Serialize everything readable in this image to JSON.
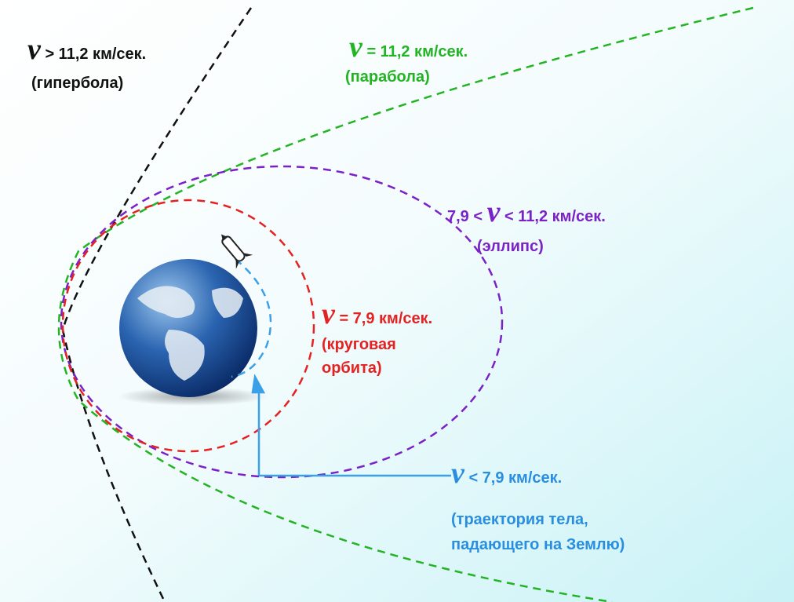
{
  "labels": [
    {
      "symbol": "v",
      "text": "> 11,2 км/сек.",
      "note": [
        "(гипербола)"
      ]
    },
    {
      "symbol": "v",
      "text": "= 11,2 км/сек.",
      "note": [
        "(парабола)"
      ]
    },
    {
      "prefix": "7,9 <",
      "symbol": "v",
      "text": "< 11,2 км/сек.",
      "note": [
        "(эллипс)"
      ]
    },
    {
      "symbol": "v",
      "text": "= 7,9 км/сек.",
      "note": [
        "(круговая",
        "орбита)"
      ]
    },
    {
      "symbol": "v",
      "text": "< 7,9 км/сек.",
      "note": [
        "(траектория тела,",
        "падающего на Землю)"
      ]
    }
  ]
}
